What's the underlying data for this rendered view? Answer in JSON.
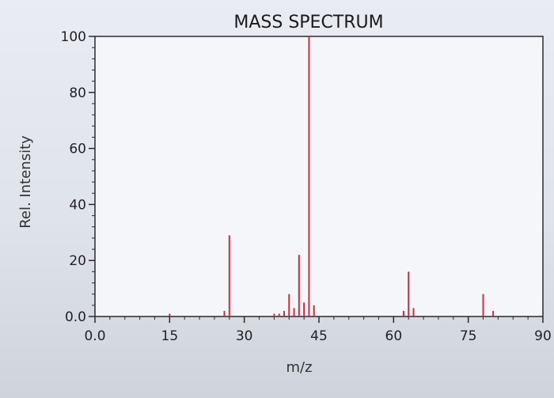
{
  "chart_data": {
    "type": "bar",
    "title": "MASS SPECTRUM",
    "xlabel": "m/z",
    "ylabel": "Rel. Intensity",
    "xlim": [
      0,
      90
    ],
    "ylim": [
      0,
      100
    ],
    "x_ticks": [
      "0.0",
      "15",
      "30",
      "45",
      "60",
      "75",
      "90"
    ],
    "y_ticks": [
      "0.0",
      "20",
      "40",
      "60",
      "80",
      "100"
    ],
    "series": [
      {
        "x": [
          15,
          26,
          27,
          36,
          37,
          38,
          39,
          40,
          41,
          42,
          43,
          44,
          62,
          63,
          64,
          78,
          80
        ],
        "values": [
          1,
          2,
          29,
          1,
          1,
          2,
          8,
          3,
          22,
          5,
          100,
          4,
          2,
          16,
          3,
          8,
          2
        ]
      }
    ],
    "grid": false,
    "colors": {
      "peak": "#d42a3c",
      "plot_bg": "#f5f6f9",
      "axis": "#2a2a2a"
    }
  }
}
